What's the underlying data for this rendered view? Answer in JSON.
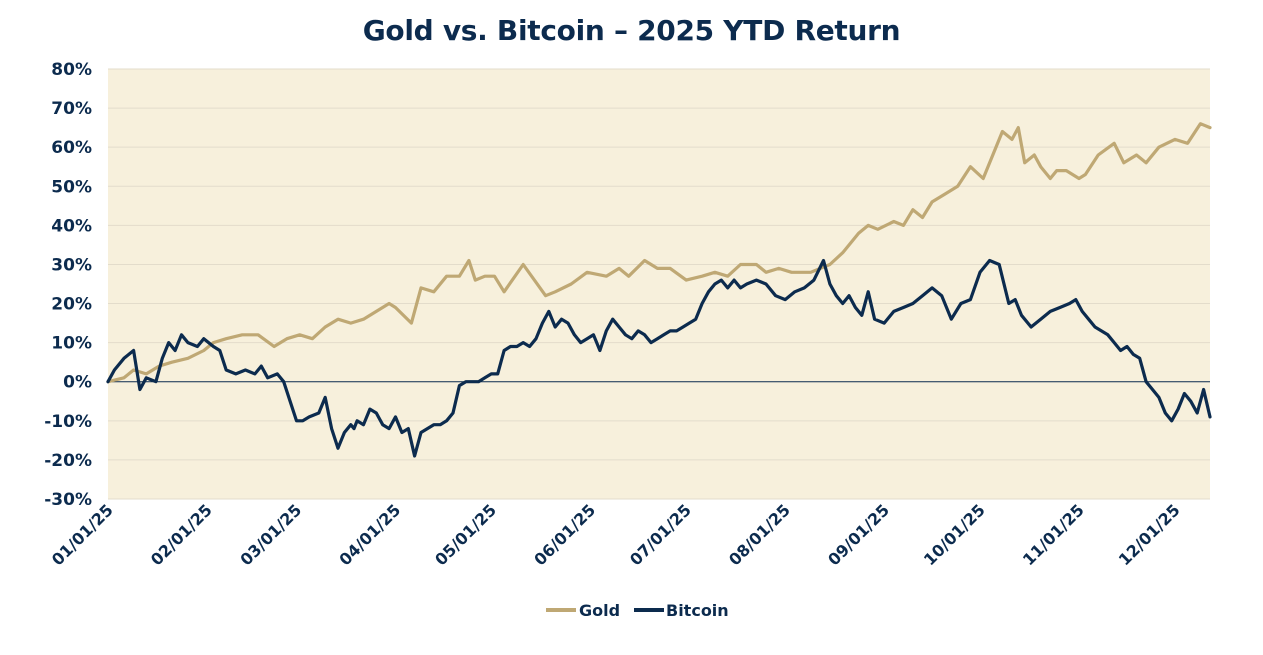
{
  "chart_data": {
    "type": "line",
    "title": "Gold vs. Bitcoin – 2025 YTD Return",
    "xlabel": "",
    "ylabel": "",
    "ylim": [
      -30,
      80
    ],
    "yticks": [
      80,
      70,
      60,
      50,
      40,
      30,
      20,
      10,
      0,
      -10,
      -20,
      -30
    ],
    "ytick_labels": [
      "80%",
      "70%",
      "60%",
      "50%",
      "40%",
      "30%",
      "20%",
      "10%",
      "0%",
      "-10%",
      "-20%",
      "-30%"
    ],
    "xlim": [
      0,
      345
    ],
    "xticks": [
      0,
      31,
      59,
      90,
      120,
      151,
      181,
      212,
      243,
      273,
      304,
      334
    ],
    "xtick_labels": [
      "01/01/25",
      "02/01/25",
      "03/01/25",
      "04/01/25",
      "05/01/25",
      "06/01/25",
      "07/01/25",
      "08/01/25",
      "09/01/25",
      "10/01/25",
      "11/01/25",
      "12/01/25"
    ],
    "grid": true,
    "legend_position": "bottom-center",
    "colors": {
      "plot_bg": "#f7f0dc",
      "gold": "#bfa874",
      "bitcoin": "#0c2b4e",
      "grid": "#e3dccb"
    },
    "series": [
      {
        "name": "Gold",
        "color": "#bfa874",
        "x": [
          0,
          5,
          8,
          12,
          16,
          20,
          25,
          30,
          33,
          37,
          42,
          47,
          52,
          56,
          60,
          64,
          68,
          72,
          76,
          80,
          84,
          88,
          90,
          95,
          98,
          102,
          106,
          110,
          113,
          115,
          118,
          121,
          124,
          130,
          137,
          140,
          145,
          150,
          156,
          160,
          163,
          168,
          172,
          176,
          181,
          186,
          190,
          194,
          198,
          203,
          206,
          210,
          214,
          220,
          226,
          230,
          235,
          238,
          241,
          246,
          249,
          252,
          255,
          258,
          262,
          266,
          270,
          274,
          277,
          280,
          283,
          285,
          287,
          290,
          292,
          295,
          297,
          300,
          304,
          306,
          310,
          315,
          318,
          322,
          325,
          329,
          334,
          338,
          342,
          345
        ],
        "values": [
          0,
          1,
          3,
          2,
          4,
          5,
          6,
          8,
          10,
          11,
          12,
          12,
          9,
          11,
          12,
          11,
          14,
          16,
          15,
          16,
          18,
          20,
          19,
          15,
          24,
          23,
          27,
          27,
          31,
          26,
          27,
          27,
          23,
          30,
          22,
          23,
          25,
          28,
          27,
          29,
          27,
          31,
          29,
          29,
          26,
          27,
          28,
          27,
          30,
          30,
          28,
          29,
          28,
          28,
          30,
          33,
          38,
          40,
          39,
          41,
          40,
          44,
          42,
          46,
          48,
          50,
          55,
          52,
          58,
          64,
          62,
          65,
          56,
          58,
          55,
          52,
          54,
          54,
          52,
          53,
          58,
          61,
          56,
          58,
          56,
          60,
          62,
          61,
          66,
          65
        ]
      },
      {
        "name": "Bitcoin",
        "color": "#0c2b4e",
        "x": [
          0,
          2,
          5,
          8,
          10,
          12,
          15,
          17,
          19,
          21,
          23,
          25,
          28,
          30,
          33,
          35,
          37,
          40,
          43,
          46,
          48,
          50,
          53,
          55,
          57,
          59,
          61,
          63,
          66,
          68,
          70,
          72,
          74,
          76,
          77,
          78,
          80,
          82,
          84,
          86,
          88,
          90,
          92,
          94,
          96,
          98,
          100,
          102,
          104,
          106,
          108,
          110,
          112,
          114,
          116,
          118,
          120,
          122,
          124,
          126,
          128,
          130,
          132,
          134,
          136,
          138,
          140,
          142,
          144,
          146,
          148,
          150,
          152,
          154,
          156,
          158,
          160,
          162,
          164,
          166,
          168,
          170,
          172,
          174,
          176,
          178,
          180,
          182,
          184,
          186,
          188,
          190,
          192,
          194,
          196,
          198,
          200,
          203,
          206,
          209,
          212,
          215,
          218,
          221,
          224,
          226,
          228,
          230,
          232,
          234,
          236,
          238,
          240,
          243,
          246,
          249,
          252,
          255,
          258,
          261,
          264,
          267,
          270,
          273,
          276,
          279,
          282,
          284,
          286,
          289,
          292,
          295,
          298,
          301,
          303,
          305,
          307,
          309,
          311,
          313,
          315,
          317,
          319,
          321,
          323,
          325,
          327,
          329,
          331,
          333,
          335,
          337,
          339,
          341,
          343,
          345
        ],
        "values": [
          0,
          3,
          6,
          8,
          -2,
          1,
          0,
          6,
          10,
          8,
          12,
          10,
          9,
          11,
          9,
          8,
          3,
          2,
          3,
          2,
          4,
          1,
          2,
          0,
          -5,
          -10,
          -10,
          -9,
          -8,
          -4,
          -12,
          -17,
          -13,
          -11,
          -12,
          -10,
          -11,
          -7,
          -8,
          -11,
          -12,
          -9,
          -13,
          -12,
          -19,
          -13,
          -12,
          -11,
          -11,
          -10,
          -8,
          -1,
          0,
          0,
          0,
          1,
          2,
          2,
          8,
          9,
          9,
          10,
          9,
          11,
          15,
          18,
          14,
          16,
          15,
          12,
          10,
          11,
          12,
          8,
          13,
          16,
          14,
          12,
          11,
          13,
          12,
          10,
          11,
          12,
          13,
          13,
          14,
          15,
          16,
          20,
          23,
          25,
          26,
          24,
          26,
          24,
          25,
          26,
          25,
          22,
          21,
          23,
          24,
          26,
          31,
          25,
          22,
          20,
          22,
          19,
          17,
          23,
          16,
          15,
          18,
          19,
          20,
          22,
          24,
          22,
          16,
          20,
          21,
          28,
          31,
          30,
          20,
          21,
          17,
          14,
          16,
          18,
          19,
          20,
          21,
          18,
          16,
          14,
          13,
          12,
          10,
          8,
          9,
          7,
          6,
          0,
          -2,
          -4,
          -8,
          -10,
          -7,
          -3,
          -5,
          -8,
          -2,
          -9
        ]
      }
    ]
  }
}
